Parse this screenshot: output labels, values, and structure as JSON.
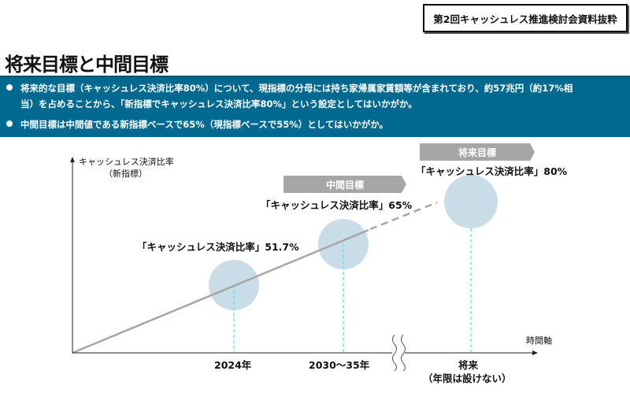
{
  "source_label": "第2回キャッシュレス推進検討会資料抜粋",
  "title": "将来目標と中間目標",
  "bullets": [
    {
      "line1": "将来的な目標（キャッシュレス決済比率80%）について、現指標の分母には持ち家帰属家賃額等が含まれており、約57兆円（約17%相",
      "line2": "当）を占めることから、「新指標でキャッシュレス決済比率80%」という設定としてはいかがか。"
    },
    {
      "line1": "中間目標は中間値である新指標ベースで65%（現指標ベースで55%）としてはいかがか。"
    }
  ],
  "diagram": {
    "y_axis_label": "キャッシュレス決済比率",
    "y_axis_sub": "（新指標）",
    "x_axis_label": "時間軸",
    "points": [
      {
        "label": "「キャッシュレス決済比率」51.7%",
        "x_label": "2024年"
      },
      {
        "banner": "中間目標",
        "label": "「キャッシュレス決済比率」65%",
        "x_label": "2030～35年"
      },
      {
        "banner": "将来目標",
        "label": "「キャッシュレス決済比率」80%",
        "x_label": "将来",
        "x_sub": "（年限は設けない）"
      }
    ],
    "colors": {
      "bar": "#00698f",
      "circle": "#c9dde9",
      "banner": "#a6a6a6"
    }
  }
}
